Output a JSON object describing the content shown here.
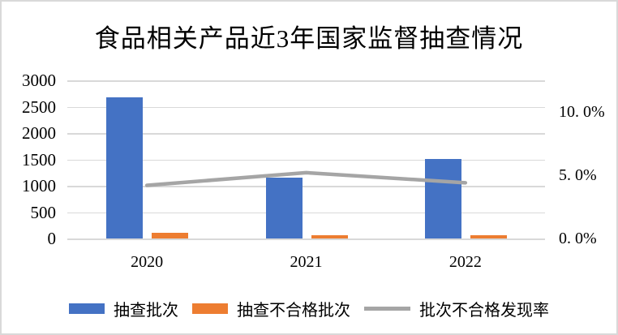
{
  "frame": {
    "background": "#ffffff",
    "border_color": "#d9d9d9"
  },
  "chart_data": {
    "type": "combo",
    "title": "食品相关产品近3年国家监督抽查情况",
    "categories": [
      "2020",
      "2021",
      "2022"
    ],
    "series": [
      {
        "id": "sampled-batches",
        "name": "抽查批次",
        "kind": "bar",
        "axis": "left",
        "color": "#4472C4",
        "values": [
          2670,
          1160,
          1510
        ]
      },
      {
        "id": "failed-batches",
        "name": "抽查不合格批次",
        "kind": "bar",
        "axis": "left",
        "color": "#ED7D31",
        "values": [
          115,
          55,
          65
        ]
      },
      {
        "id": "failure-rate",
        "name": "批次不合格发现率",
        "kind": "line",
        "axis": "right",
        "color": "#A5A5A5",
        "unit": "%",
        "values": [
          4.2,
          5.2,
          4.4
        ]
      }
    ],
    "left_axis": {
      "min": 0,
      "max": 3000,
      "tick_step": 500,
      "tick_labels": [
        "3000",
        "2500",
        "2000",
        "1500",
        "1000",
        "500",
        "0"
      ]
    },
    "right_axis": {
      "min": 0,
      "max": 12.5,
      "ticks": [
        {
          "label": "10. 0%",
          "value": 10
        },
        {
          "label": "5. 0%",
          "value": 5
        },
        {
          "label": "0. 0%",
          "value": 0
        }
      ]
    },
    "legend": {
      "position": "bottom",
      "entries": [
        "抽查批次",
        "抽查不合格批次",
        "批次不合格发现率"
      ]
    },
    "grid": true,
    "grid_color": "#d9d9d9"
  }
}
